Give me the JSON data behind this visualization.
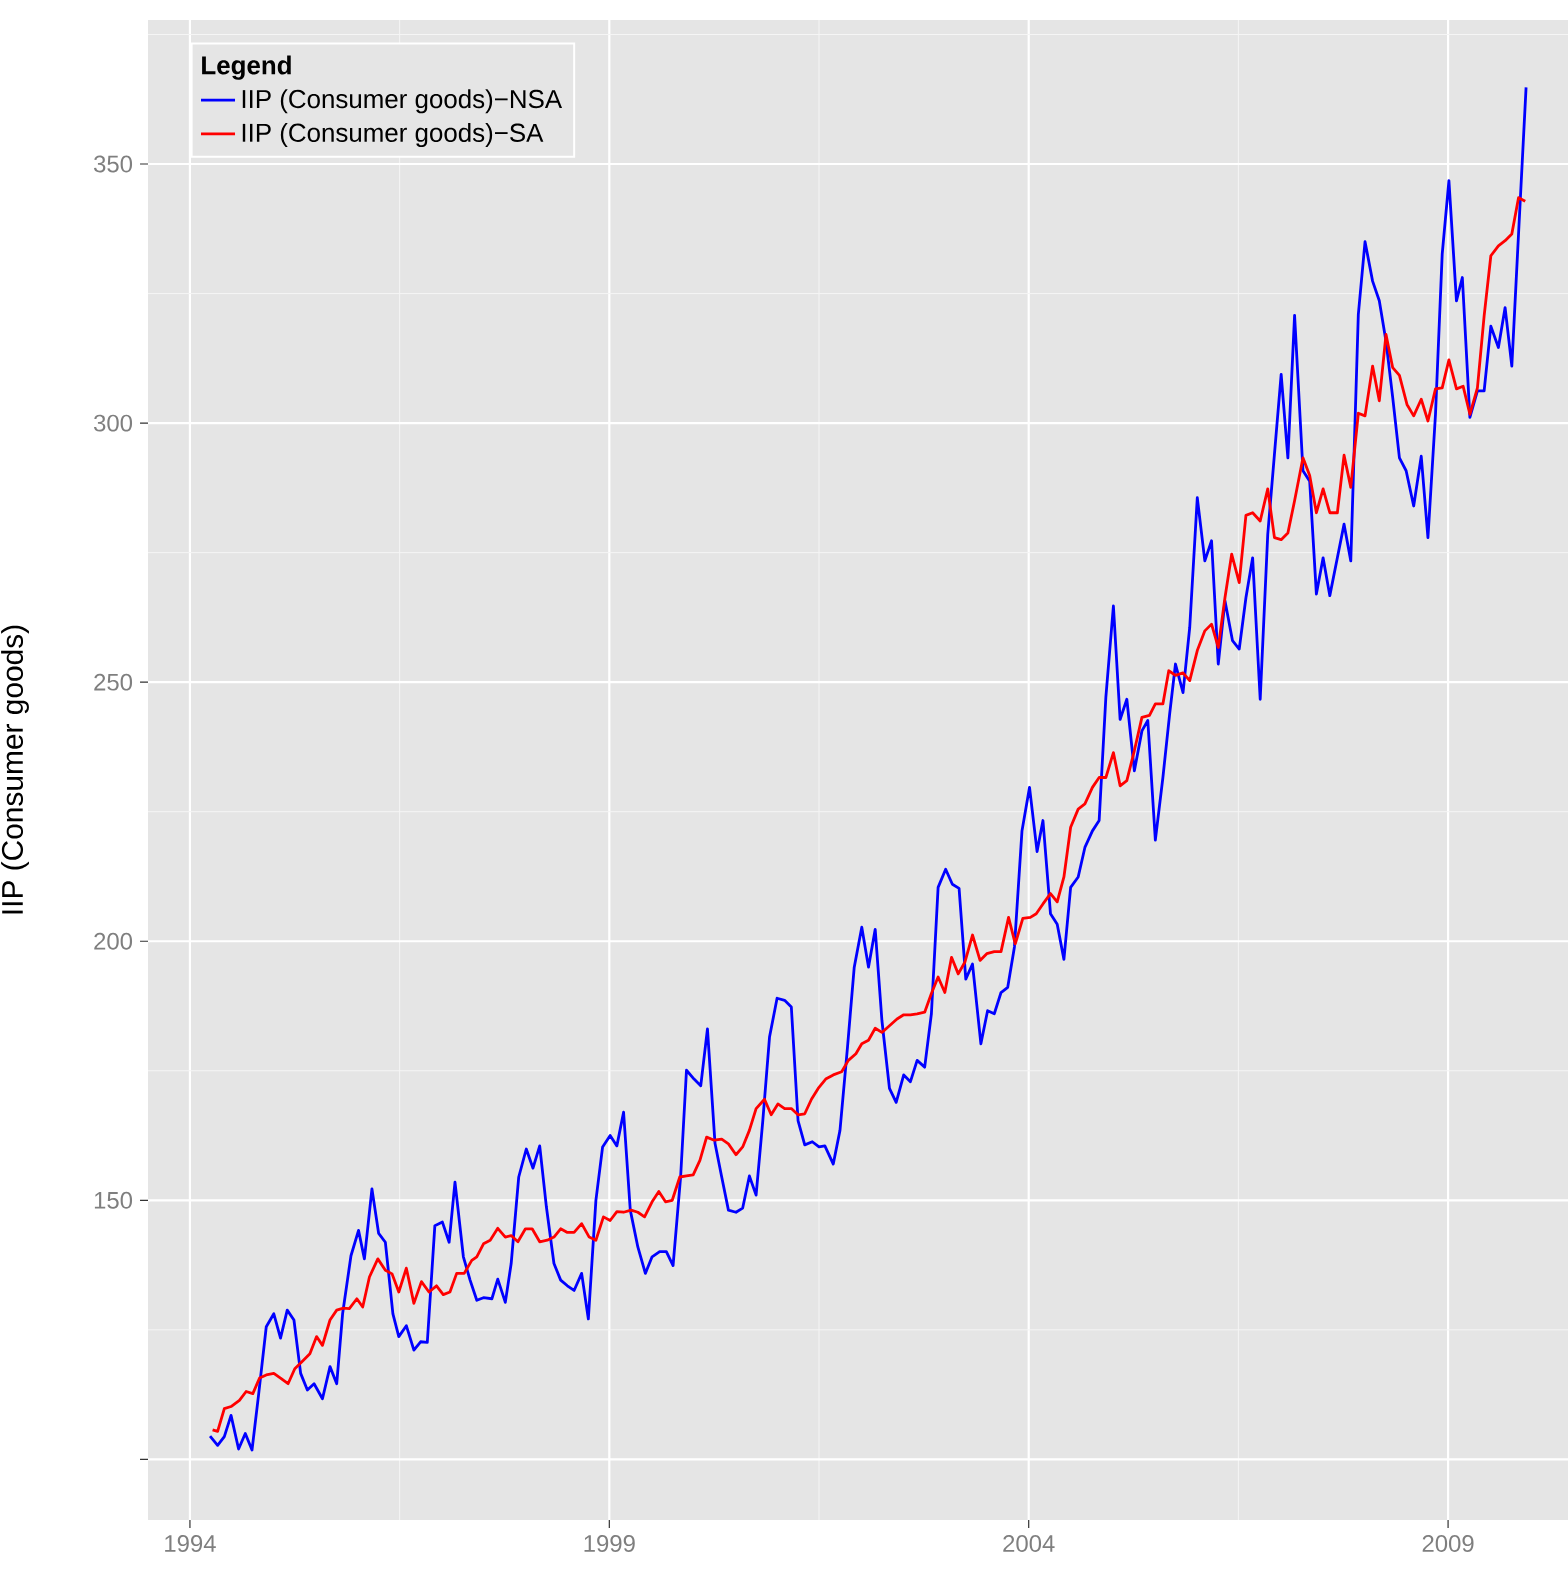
{
  "chart_data": {
    "type": "line",
    "ylabel": "IIP (Consumer goods)",
    "legend_title": "**Legend**",
    "legend": "top left",
    "grid": true,
    "xlim": [
      1993.5,
      2010.43
    ],
    "ylim": [
      88.3,
      377.8
    ],
    "xticks": [
      1994,
      1999,
      2004,
      2009
    ],
    "yticks": [
      {
        "value": 100,
        "label": null
      },
      150,
      200,
      250,
      300,
      350
    ],
    "series": [
      {
        "name": "IIP (Consumer goods)−NSA",
        "color": "#0000ff",
        "x": [
          1994.24,
          1994.33,
          1994.41,
          1994.49,
          1994.58,
          1994.66,
          1994.74,
          1994.82,
          1994.91,
          1995.0,
          1995.08,
          1995.16,
          1995.24,
          1995.32,
          1995.4,
          1995.48,
          1995.58,
          1995.67,
          1995.75,
          1995.82,
          1995.92,
          1996.01,
          1996.08,
          1996.17,
          1996.25,
          1996.33,
          1996.42,
          1996.49,
          1996.58,
          1996.67,
          1996.75,
          1996.83,
          1996.92,
          1997.01,
          1997.09,
          1997.16,
          1997.26,
          1997.34,
          1997.42,
          1997.5,
          1997.6,
          1997.67,
          1997.76,
          1997.83,
          1997.92,
          1998.01,
          1998.09,
          1998.17,
          1998.25,
          1998.34,
          1998.42,
          1998.5,
          1998.58,
          1998.67,
          1998.75,
          1998.84,
          1998.92,
          1999.01,
          1999.09,
          1999.17,
          1999.25,
          1999.34,
          1999.43,
          1999.51,
          1999.6,
          1999.68,
          1999.76,
          1999.85,
          1999.92,
          2000.01,
          2000.09,
          2000.17,
          2000.26,
          2000.34,
          2000.42,
          2000.51,
          2000.59,
          2000.67,
          2000.75,
          2000.83,
          2000.91,
          2001.0,
          2001.09,
          2001.17,
          2001.25,
          2001.33,
          2001.42,
          2001.5,
          2001.57,
          2001.67,
          2001.75,
          2001.84,
          2001.92,
          2002.01,
          2002.09,
          2002.17,
          2002.25,
          2002.34,
          2002.42,
          2002.51,
          2002.59,
          2002.67,
          2002.76,
          2002.84,
          2002.92,
          2003.01,
          2003.09,
          2003.17,
          2003.25,
          2003.33,
          2003.43,
          2003.51,
          2003.59,
          2003.67,
          2003.75,
          2003.83,
          2003.92,
          2004.01,
          2004.1,
          2004.17,
          2004.26,
          2004.34,
          2004.42,
          2004.5,
          2004.59,
          2004.67,
          2004.76,
          2004.84,
          2004.92,
          2005.01,
          2005.09,
          2005.17,
          2005.26,
          2005.35,
          2005.42,
          2005.51,
          2005.6,
          2005.68,
          2005.75,
          2005.84,
          2005.92,
          2006.01,
          2006.1,
          2006.18,
          2006.26,
          2006.34,
          2006.43,
          2006.51,
          2006.59,
          2006.67,
          2006.76,
          2006.85,
          2006.93,
          2007.01,
          2007.09,
          2007.17,
          2007.27,
          2007.35,
          2007.43,
          2007.51,
          2007.59,
          2007.68,
          2007.76,
          2007.84,
          2007.93,
          2008.01,
          2008.1,
          2008.18,
          2008.26,
          2008.34,
          2008.42,
          2008.5,
          2008.59,
          2008.68,
          2008.76,
          2008.85,
          2008.93,
          2009.01,
          2009.1,
          2009.17,
          2009.26,
          2009.35,
          2009.43,
          2009.51,
          2009.6,
          2009.68,
          2009.76,
          2009.84,
          2009.93
        ],
        "values": [
          104.5,
          102.7,
          104.4,
          108.5,
          102,
          105,
          101.8,
          112.7,
          125.6,
          128.1,
          123.4,
          128.8,
          126.9,
          116.6,
          113.4,
          114.6,
          111.7,
          117.9,
          114.6,
          128.1,
          139.3,
          144.2,
          138.7,
          152.2,
          143.6,
          141.9,
          128.1,
          123.7,
          125.8,
          121.1,
          122.7,
          122.6,
          145.1,
          145.8,
          141.9,
          153.5,
          139.1,
          134.6,
          130.7,
          131.2,
          131.0,
          134.8,
          130.3,
          137.8,
          154.5,
          159.9,
          156.2,
          160.5,
          148.7,
          137.8,
          134.6,
          133.5,
          132.6,
          135.9,
          127.1,
          150,
          160.3,
          162.5,
          160.5,
          167,
          148.1,
          141,
          135.9,
          139.1,
          140.1,
          140.1,
          137.4,
          154.5,
          175.1,
          173.4,
          172.1,
          183.1,
          161.0,
          154.5,
          148.1,
          147.7,
          148.5,
          154.7,
          151,
          165.4,
          181.5,
          189,
          188.6,
          187.3,
          165.4,
          160.7,
          161.3,
          160.3,
          160.5,
          157,
          163.5,
          179.6,
          195,
          202.7,
          195,
          202.3,
          184.7,
          171.6,
          168.9,
          174.2,
          172.9,
          177,
          175.7,
          186,
          210.4,
          213.9,
          211,
          210.2,
          192.7,
          195.6,
          180.2,
          186.6,
          186,
          190.1,
          191.1,
          198.9,
          221.3,
          229.7,
          217.3,
          223.3,
          205.3,
          203.3,
          196.5,
          210.4,
          212.4,
          218.1,
          221.3,
          223.3,
          247.1,
          264.7,
          242.8,
          246.7,
          232.9,
          240.6,
          242.6,
          219.5,
          231.6,
          243.8,
          253.5,
          248,
          260.6,
          285.6,
          273.4,
          277.3,
          253.5,
          265.7,
          258,
          256.4,
          266.3,
          274,
          246.7,
          278.5,
          294,
          309.4,
          293.3,
          320.8,
          290.8,
          288.8,
          267,
          274,
          266.7,
          274,
          280.5,
          273.4,
          321,
          335,
          327.4,
          323.6,
          315.8,
          304.9,
          293.3,
          290.8,
          284,
          293.6,
          277.9,
          301.7,
          332.6,
          346.8,
          323.6,
          328.1,
          301.1,
          306.2,
          306.2,
          318.7,
          314.6,
          322.3,
          311,
          336.5,
          364.8
        ]
      },
      {
        "name": "IIP (Consumer goods)−SA",
        "color": "#ff0000",
        "x": [
          1994.27,
          1994.33,
          1994.41,
          1994.49,
          1994.59,
          1994.67,
          1994.75,
          1994.83,
          1994.91,
          1995.0,
          1995.08,
          1995.17,
          1995.25,
          1995.35,
          1995.43,
          1995.51,
          1995.58,
          1995.67,
          1995.75,
          1995.83,
          1995.9,
          1995.99,
          1996.06,
          1996.14,
          1996.24,
          1996.33,
          1996.41,
          1996.49,
          1996.58,
          1996.67,
          1996.76,
          1996.85,
          1996.94,
          1997.02,
          1997.1,
          1997.18,
          1997.27,
          1997.36,
          1997.42,
          1997.5,
          1997.58,
          1997.67,
          1997.76,
          1997.83,
          1997.91,
          1998.0,
          1998.08,
          1998.17,
          1998.26,
          1998.34,
          1998.42,
          1998.5,
          1998.58,
          1998.67,
          1998.76,
          1998.84,
          1998.93,
          1999.01,
          1999.09,
          1999.17,
          1999.26,
          1999.34,
          1999.42,
          1999.51,
          1999.59,
          1999.67,
          1999.75,
          1999.84,
          1999.92,
          2000.0,
          2000.08,
          2000.16,
          2000.25,
          2000.34,
          2000.42,
          2000.51,
          2000.59,
          2000.67,
          2000.75,
          2000.85,
          2000.93,
          2001.01,
          2001.09,
          2001.17,
          2001.25,
          2001.33,
          2001.41,
          2001.49,
          2001.58,
          2001.67,
          2001.77,
          2001.85,
          2001.94,
          2002.01,
          2002.09,
          2002.17,
          2002.25,
          2002.34,
          2002.43,
          2002.51,
          2002.59,
          2002.67,
          2002.76,
          2002.84,
          2002.92,
          2003.0,
          2003.08,
          2003.16,
          2003.24,
          2003.33,
          2003.42,
          2003.5,
          2003.59,
          2003.67,
          2003.76,
          2003.84,
          2003.93,
          2004.02,
          2004.09,
          2004.17,
          2004.26,
          2004.34,
          2004.42,
          2004.5,
          2004.59,
          2004.67,
          2004.76,
          2004.84,
          2004.92,
          2005.01,
          2005.09,
          2005.17,
          2005.26,
          2005.35,
          2005.44,
          2005.51,
          2005.6,
          2005.67,
          2005.75,
          2005.84,
          2005.92,
          2006.01,
          2006.1,
          2006.18,
          2006.26,
          2006.34,
          2006.42,
          2006.51,
          2006.59,
          2006.67,
          2006.76,
          2006.85,
          2006.93,
          2007.01,
          2007.09,
          2007.17,
          2007.27,
          2007.35,
          2007.43,
          2007.51,
          2007.59,
          2007.68,
          2007.76,
          2007.84,
          2007.93,
          2008.01,
          2008.1,
          2008.18,
          2008.26,
          2008.34,
          2008.42,
          2008.51,
          2008.59,
          2008.68,
          2008.76,
          2008.85,
          2008.93,
          2009.01,
          2009.1,
          2009.18,
          2009.26,
          2009.35,
          2009.43,
          2009.51,
          2009.6,
          2009.68,
          2009.76,
          2009.84,
          2009.92
        ],
        "values": [
          105.7,
          105.4,
          109.8,
          110.2,
          111.4,
          113.1,
          112.7,
          115.7,
          116.3,
          116.6,
          115.7,
          114.6,
          117.5,
          119.1,
          120.4,
          123.7,
          122,
          126.9,
          128.8,
          129.2,
          129.1,
          131,
          129.4,
          135.2,
          138.7,
          136.5,
          135.8,
          132.3,
          136.9,
          130.1,
          134.3,
          132.3,
          133.5,
          131.8,
          132.3,
          135.9,
          135.9,
          138.4,
          139.1,
          141.6,
          142.3,
          144.6,
          142.9,
          143.2,
          142,
          144.5,
          144.5,
          142,
          142.3,
          142.9,
          144.5,
          143.8,
          143.8,
          145.5,
          142.9,
          142.3,
          146.8,
          146.1,
          147.8,
          147.7,
          148.1,
          147.7,
          146.8,
          149.7,
          151.7,
          149.7,
          150,
          154.5,
          154.7,
          154.9,
          157.7,
          162.2,
          161.6,
          161.8,
          160.9,
          158.8,
          160.3,
          163.5,
          167.7,
          169.5,
          166.5,
          168.6,
          167.7,
          167.7,
          166.5,
          166.7,
          169.5,
          171.6,
          173.4,
          174.2,
          174.8,
          177,
          178.3,
          180.2,
          180.9,
          183.2,
          182.4,
          183.7,
          185,
          185.8,
          185.8,
          186,
          186.3,
          189.9,
          193.1,
          190.1,
          196.9,
          193.7,
          196,
          201.2,
          196.3,
          197.6,
          198,
          198,
          204.6,
          199.5,
          204.4,
          204.6,
          205.3,
          207.2,
          209.2,
          207.6,
          212.4,
          222,
          225.5,
          226.5,
          229.7,
          231.6,
          231.6,
          236.4,
          230,
          231,
          236.8,
          243.2,
          243.6,
          245.8,
          245.8,
          252.2,
          251.3,
          251.8,
          250.3,
          256.1,
          259.9,
          261.2,
          256.7,
          266.3,
          274.7,
          269.2,
          282.2,
          282.7,
          281.1,
          287.3,
          277.9,
          277.5,
          278.8,
          285,
          293.3,
          289.9,
          282.7,
          287.3,
          282.7,
          282.7,
          293.8,
          287.6,
          301.9,
          301.4,
          311,
          304.3,
          317.1,
          310.7,
          309.2,
          303.6,
          301.4,
          304.6,
          300.4,
          306.6,
          306.8,
          312.2,
          306.6,
          307.1,
          301.7,
          306.8,
          320.7,
          332.3,
          334.2,
          335.2,
          336.5,
          343.5,
          342.8
        ]
      }
    ]
  }
}
